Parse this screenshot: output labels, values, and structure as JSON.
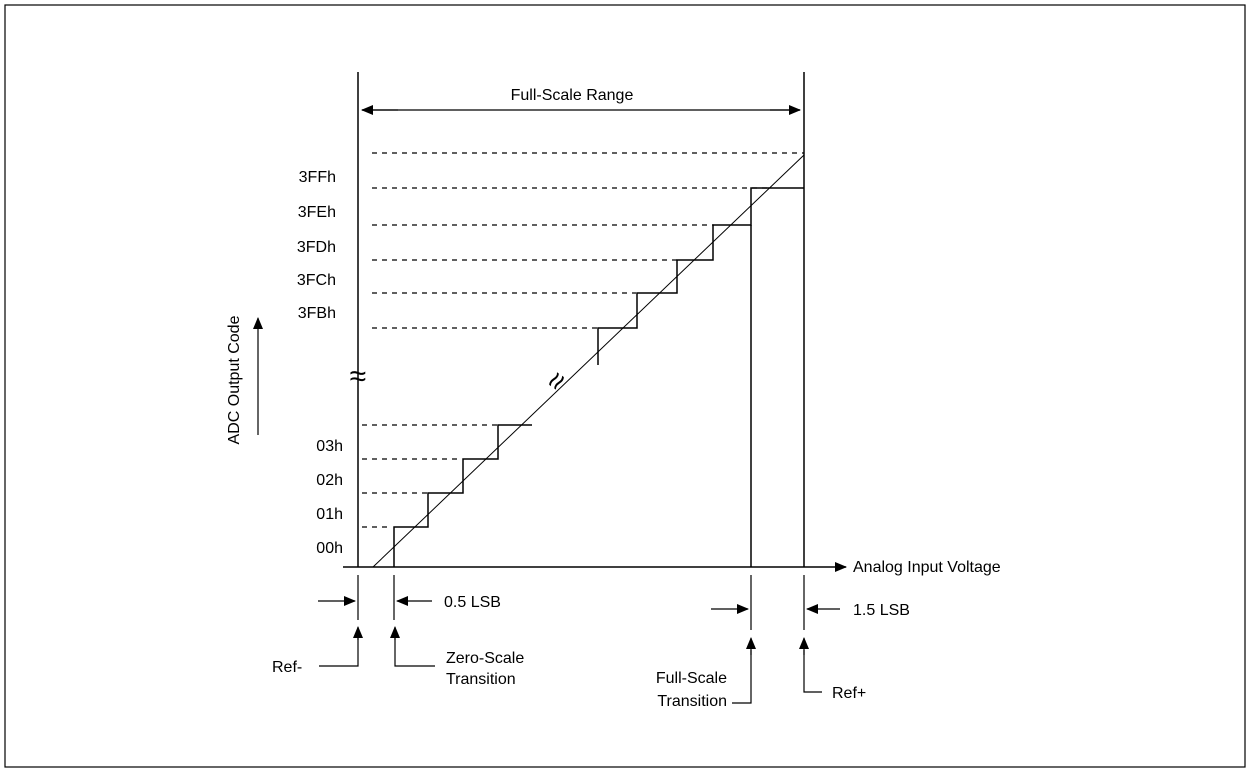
{
  "labels": {
    "full_scale_range": "Full-Scale Range",
    "y_axis": "ADC Output Code",
    "x_axis": "Analog Input Voltage",
    "half_lsb": "0.5 LSB",
    "one_half_lsb": "1.5 LSB",
    "ref_minus": "Ref-",
    "ref_plus": "Ref+",
    "zero_scale_1": "Zero-Scale",
    "zero_scale_2": "Transition",
    "full_scale_1": "Full-Scale",
    "full_scale_2": "Transition"
  },
  "codes_high": [
    "3FFh",
    "3FEh",
    "3FDh",
    "3FCh",
    "3FBh"
  ],
  "codes_low": [
    "03h",
    "02h",
    "01h",
    "00h"
  ],
  "break_symbol": "≈"
}
